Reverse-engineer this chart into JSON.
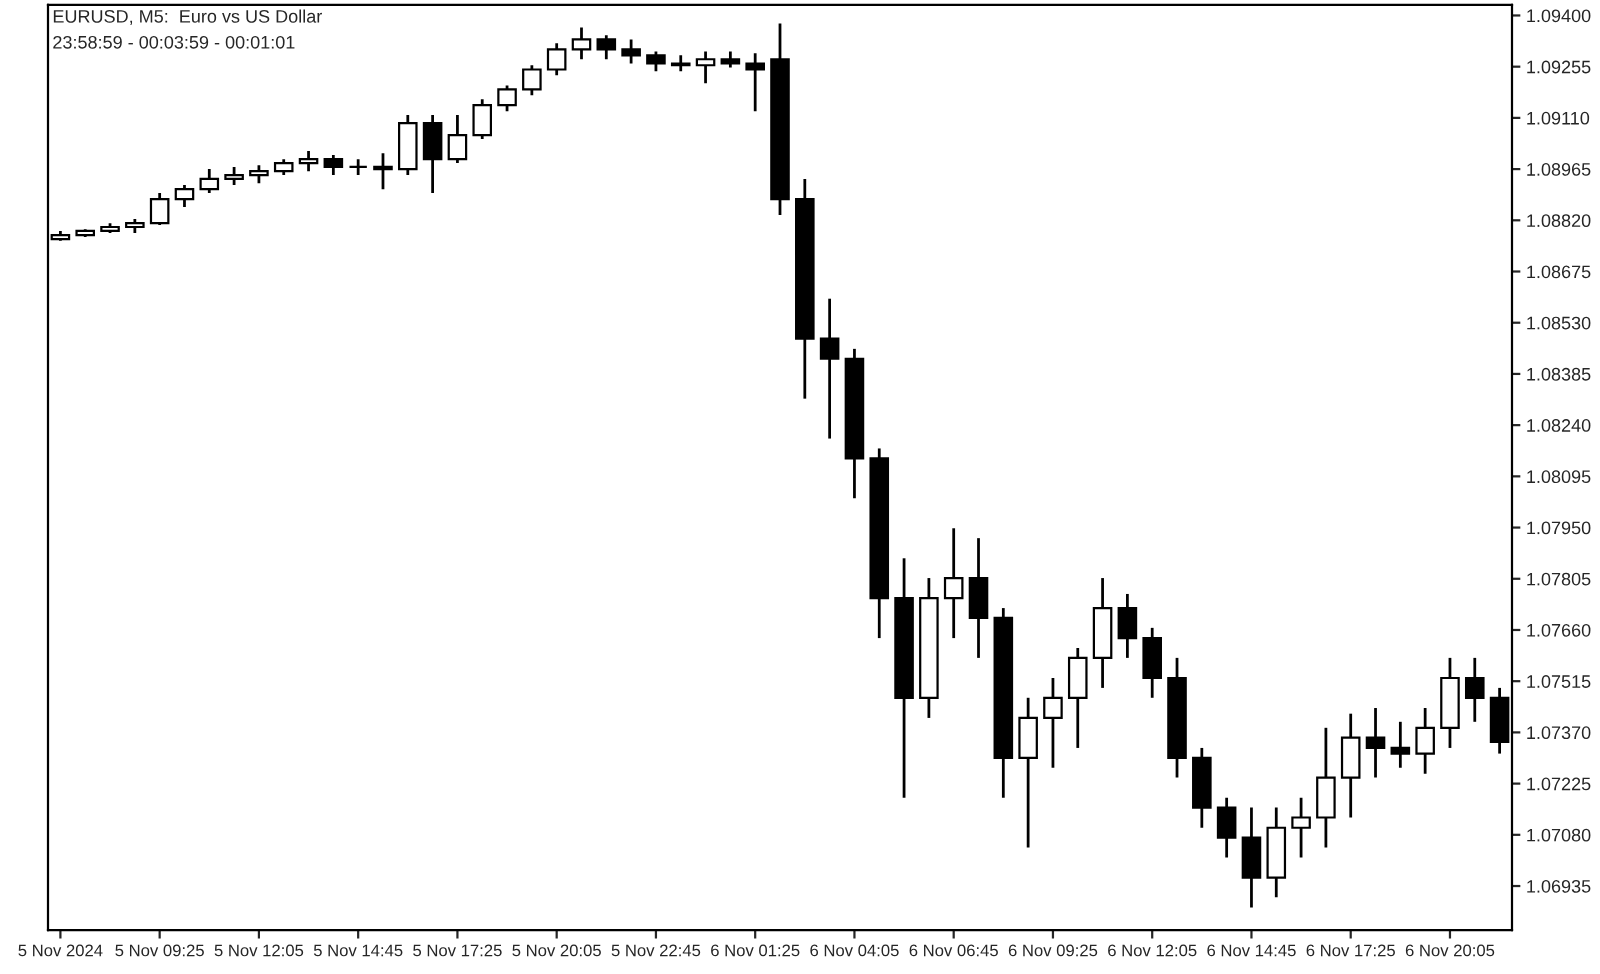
{
  "chart_data": {
    "type": "candlestick",
    "title": "EURUSD, M5:  Euro vs US Dollar",
    "subtitle": "23:58:59 - 00:03:59 - 00:01:01",
    "color": "#000000",
    "grid": false,
    "categories": [
      "5 Nov 2024",
      null,
      null,
      null,
      "5 Nov 09:25",
      null,
      null,
      null,
      "5 Nov 12:05",
      null,
      null,
      null,
      "5 Nov 14:45",
      null,
      null,
      null,
      "5 Nov 17:25",
      null,
      null,
      null,
      "5 Nov 20:05",
      null,
      null,
      null,
      "5 Nov 22:45",
      null,
      null,
      null,
      "6 Nov 01:25",
      null,
      null,
      null,
      "6 Nov 04:05",
      null,
      null,
      null,
      "6 Nov 06:45",
      null,
      null,
      null,
      "6 Nov 09:25",
      null,
      null,
      null,
      "6 Nov 12:05",
      null,
      null,
      null,
      "6 Nov 14:45",
      null,
      null,
      null,
      "6 Nov 17:25",
      null,
      null,
      null,
      "6 Nov 20:05",
      null,
      null
    ],
    "ohlc": [
      [
        1.08767,
        1.0879,
        1.08762,
        1.08778
      ],
      [
        1.08778,
        1.08795,
        1.08773,
        1.0879
      ],
      [
        1.0879,
        1.08812,
        1.08784,
        1.08801
      ],
      [
        1.08801,
        1.08824,
        1.08784,
        1.08812
      ],
      [
        1.08812,
        1.08897,
        1.08807,
        1.0888
      ],
      [
        1.0888,
        1.0892,
        1.08858,
        1.08908
      ],
      [
        1.08908,
        1.08965,
        1.08897,
        1.08937
      ],
      [
        1.08937,
        1.08971,
        1.0892,
        1.08948
      ],
      [
        1.08948,
        1.08976,
        1.08925,
        1.08959
      ],
      [
        1.08959,
        1.08993,
        1.08948,
        1.08982
      ],
      [
        1.08982,
        1.09016,
        1.08959,
        1.08993
      ],
      [
        1.08993,
        1.09005,
        1.08948,
        1.08971
      ],
      [
        1.08971,
        1.08993,
        1.08948,
        1.08971
      ],
      [
        1.08971,
        1.0901,
        1.08908,
        1.08965
      ],
      [
        1.08965,
        1.09118,
        1.08948,
        1.09095
      ],
      [
        1.09095,
        1.09118,
        1.08897,
        1.08993
      ],
      [
        1.08993,
        1.09118,
        1.08982,
        1.09061
      ],
      [
        1.09061,
        1.09163,
        1.0905,
        1.09146
      ],
      [
        1.09146,
        1.09202,
        1.09129,
        1.09191
      ],
      [
        1.09191,
        1.09259,
        1.09174,
        1.09247
      ],
      [
        1.09247,
        1.09321,
        1.09231,
        1.09304
      ],
      [
        1.09304,
        1.09366,
        1.09276,
        1.09332
      ],
      [
        1.09332,
        1.09344,
        1.09276,
        1.09304
      ],
      [
        1.09304,
        1.09332,
        1.09264,
        1.09287
      ],
      [
        1.09287,
        1.09298,
        1.09242,
        1.09264
      ],
      [
        1.09264,
        1.09287,
        1.09242,
        1.09259
      ],
      [
        1.09259,
        1.09298,
        1.09208,
        1.09276
      ],
      [
        1.09276,
        1.09298,
        1.09253,
        1.09264
      ],
      [
        1.09264,
        1.09293,
        1.09129,
        1.09247
      ],
      [
        1.09276,
        1.09377,
        1.08835,
        1.0888
      ],
      [
        1.0888,
        1.08937,
        1.08315,
        1.08485
      ],
      [
        1.08485,
        1.08598,
        1.08202,
        1.08428
      ],
      [
        1.08428,
        1.08456,
        1.08033,
        1.08146
      ],
      [
        1.08146,
        1.08174,
        1.07637,
        1.0775
      ],
      [
        1.0775,
        1.07863,
        1.07185,
        1.07468
      ],
      [
        1.07468,
        1.07807,
        1.07411,
        1.0775
      ],
      [
        1.0775,
        1.07948,
        1.07637,
        1.07807
      ],
      [
        1.07807,
        1.0792,
        1.07581,
        1.07694
      ],
      [
        1.07694,
        1.07722,
        1.07185,
        1.07298
      ],
      [
        1.07298,
        1.07468,
        1.07044,
        1.07411
      ],
      [
        1.07411,
        1.07524,
        1.0727,
        1.07468
      ],
      [
        1.07468,
        1.07609,
        1.07326,
        1.07581
      ],
      [
        1.07581,
        1.07807,
        1.07496,
        1.07722
      ],
      [
        1.07722,
        1.07762,
        1.07581,
        1.07637
      ],
      [
        1.07637,
        1.07666,
        1.07468,
        1.07524
      ],
      [
        1.07524,
        1.07581,
        1.07242,
        1.07298
      ],
      [
        1.07298,
        1.07326,
        1.071,
        1.07157
      ],
      [
        1.07157,
        1.07185,
        1.07016,
        1.07072
      ],
      [
        1.07072,
        1.07157,
        1.06874,
        1.06959
      ],
      [
        1.06959,
        1.07157,
        1.06903,
        1.071
      ],
      [
        1.071,
        1.07185,
        1.07016,
        1.07129
      ],
      [
        1.07129,
        1.07383,
        1.07044,
        1.07242
      ],
      [
        1.07242,
        1.07423,
        1.07129,
        1.07355
      ],
      [
        1.07355,
        1.07439,
        1.07242,
        1.07326
      ],
      [
        1.07326,
        1.074,
        1.0727,
        1.0731
      ],
      [
        1.0731,
        1.07439,
        1.07253,
        1.07383
      ],
      [
        1.07383,
        1.07581,
        1.07326,
        1.07524
      ],
      [
        1.07524,
        1.07581,
        1.074,
        1.07468
      ],
      [
        1.07468,
        1.07496,
        1.0731,
        1.07343
      ]
    ],
    "ylim": [
      1.0681,
      1.0943
    ],
    "yticks": [
      {
        "value": 1.094,
        "label": "1.09400"
      },
      {
        "value": 1.09255,
        "label": "1.09255"
      },
      {
        "value": 1.0911,
        "label": "1.09110"
      },
      {
        "value": 1.08965,
        "label": "1.08965"
      },
      {
        "value": 1.0882,
        "label": "1.08820"
      },
      {
        "value": 1.08675,
        "label": "1.08675"
      },
      {
        "value": 1.0853,
        "label": "1.08530"
      },
      {
        "value": 1.08385,
        "label": "1.08385"
      },
      {
        "value": 1.0824,
        "label": "1.08240"
      },
      {
        "value": 1.08095,
        "label": "1.08095"
      },
      {
        "value": 1.0795,
        "label": "1.07950"
      },
      {
        "value": 1.07805,
        "label": "1.07805"
      },
      {
        "value": 1.0766,
        "label": "1.07660"
      },
      {
        "value": 1.07515,
        "label": "1.07515"
      },
      {
        "value": 1.0737,
        "label": "1.07370"
      },
      {
        "value": 1.07225,
        "label": "1.07225"
      },
      {
        "value": 1.0708,
        "label": "1.07080"
      },
      {
        "value": 1.06935,
        "label": "1.06935"
      }
    ]
  }
}
